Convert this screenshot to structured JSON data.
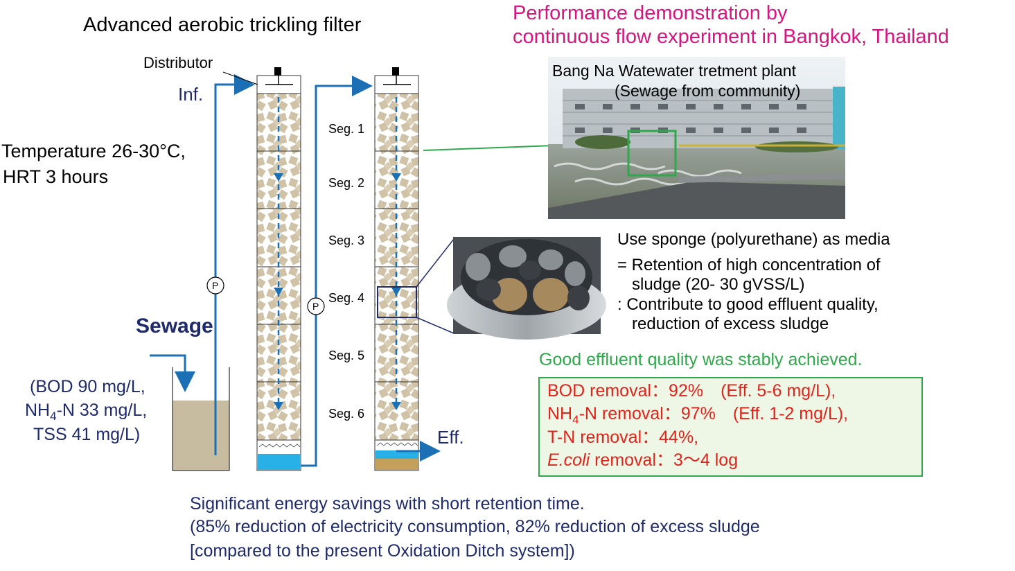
{
  "left_title": "Advanced aerobic trickling filter",
  "right_title_line1": "Performance demonstration by",
  "right_title_line2": "continuous flow experiment in Bangkok, Thailand",
  "distributor_label": "Distributor",
  "inf_label": "Inf.",
  "eff_label": "Eff.",
  "condition_line1": "Temperature 26-30°C,",
  "condition_line2": "HRT 3 hours",
  "sewage_label": "Sewage",
  "sewage_quality_line1": "(BOD 90 mg/L,",
  "sewage_quality_line2_a": "NH",
  "sewage_quality_line2_sub": "4",
  "sewage_quality_line2_b": "-N 33 mg/L,",
  "sewage_quality_line3": "TSS 41 mg/L)",
  "pump_label": "P",
  "segments": [
    "Seg. 1",
    "Seg. 2",
    "Seg. 3",
    "Seg. 4",
    "Seg. 5",
    "Seg. 6"
  ],
  "plant_caption_line1": "Bang Na Watewater tretment plant",
  "plant_caption_line2": "(Sewage from community)",
  "media_line1": "Use sponge (polyurethane) as media",
  "media_line2": "= Retention of high concentration of",
  "media_line3": "sludge (20- 30 gVSS/L)",
  "media_line4": ": Contribute to good effluent quality,",
  "media_line5": "reduction of excess sludge",
  "result_heading": "Good effluent quality was stably achieved.",
  "results": {
    "bod": "BOD removal：92%　(Eff. 5-6 mg/L),",
    "nh4_a": "NH",
    "nh4_sub": "4",
    "nh4_b": "-N removal：97%　(Eff. 1-2 mg/L),",
    "tn": "T-N removal：44%,",
    "ecoli_italic": "E.coli",
    "ecoli_rest": " removal：3～4 log"
  },
  "bottom_line1": "Significant energy savings with short retention time.",
  "bottom_line2": "(85% reduction of electricity consumption, 82% reduction of excess sludge",
  "bottom_line3": "[compared to the present Oxidation Ditch system])",
  "colors": {
    "magenta": "#d6157f",
    "navy": "#1f2a6b",
    "green": "#2ea84a",
    "red": "#e0231b",
    "flow": "#1a6fb5",
    "media": "#cfc2a6",
    "water": "#29b0e6",
    "sludge": "#c4a05a"
  }
}
